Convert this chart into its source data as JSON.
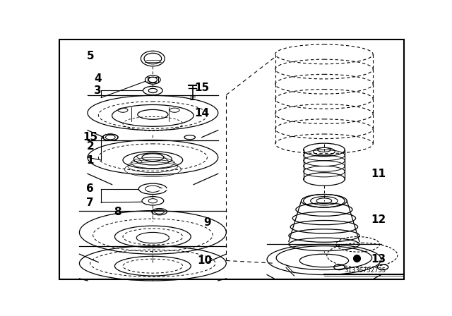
{
  "bg_color": "#ffffff",
  "line_color": "#000000",
  "car_text": "31336752735",
  "label_fontsize": 11
}
